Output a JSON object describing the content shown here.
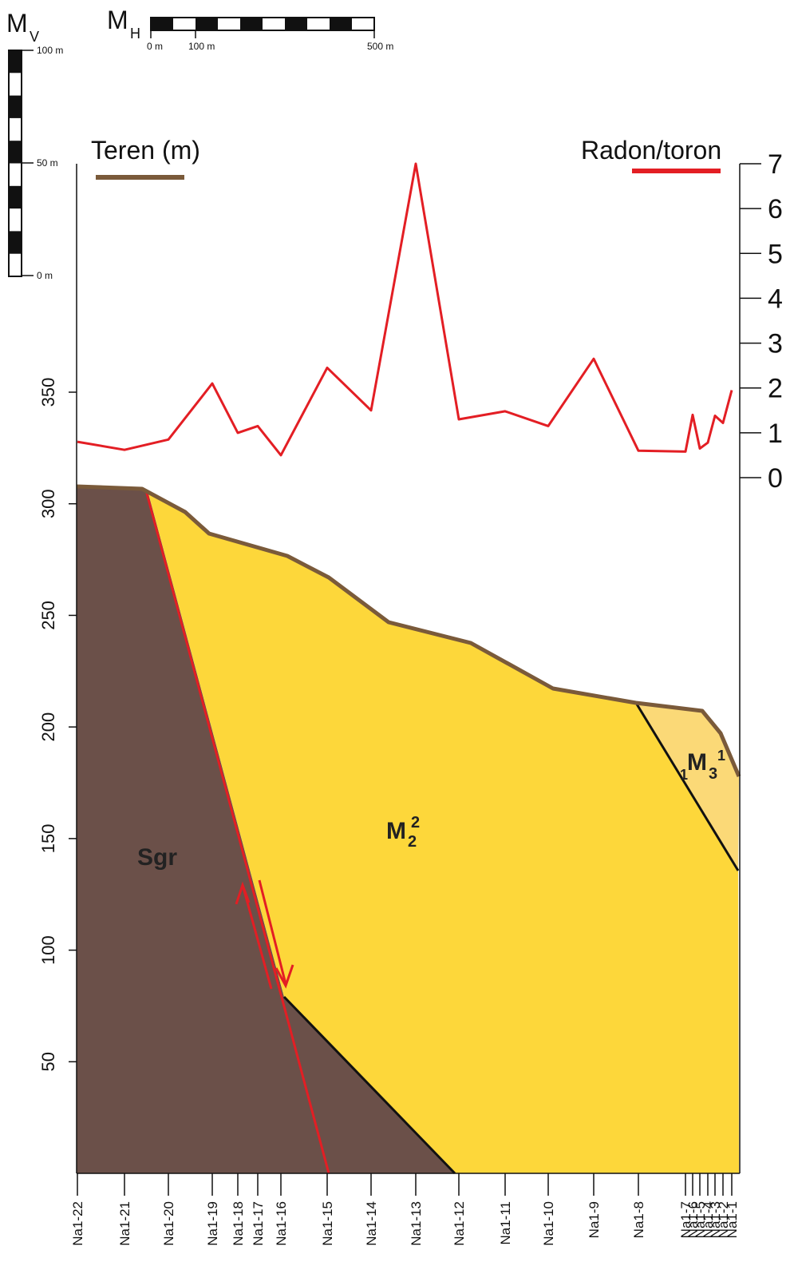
{
  "scales": {
    "vertical": {
      "symbol": "M",
      "sub": "V",
      "labels": [
        "100 m",
        "50 m",
        "0 m"
      ]
    },
    "horizontal": {
      "symbol": "M",
      "sub": "H",
      "labels": [
        "0 m",
        "100 m",
        "500 m"
      ]
    }
  },
  "legend": {
    "terrain_label": "Teren (m)",
    "terrain_color": "#7a5a3a",
    "radon_label": "Radon/toron",
    "radon_color": "#e31e24"
  },
  "units": {
    "sgr": {
      "label": "Sgr",
      "color": "#6b5049"
    },
    "m2": {
      "base": "M",
      "sub": "2",
      "sup": "2",
      "color": "#fdd73a"
    },
    "m3": {
      "pre": "1",
      "base": "M",
      "sub": "3",
      "sup": "1",
      "color": "#fbd977"
    }
  },
  "chart_data": {
    "type": "line",
    "stations": [
      "Na1-22",
      "Na1-21",
      "Na1-20",
      "Na1-19",
      "Na1-18",
      "Na1-17",
      "Na1-16",
      "Na1-15",
      "Na1-14",
      "Na1-13",
      "Na1-12",
      "Na1-11",
      "Na1-10",
      "Na1-9",
      "Na1-8",
      "Na1-7",
      "Na1-6",
      "Na1-5",
      "Na1-4",
      "Na1-3",
      "Na1-2",
      "Na1-1"
    ],
    "left_axis": {
      "ticks": [
        50,
        100,
        150,
        200,
        250,
        300,
        350
      ],
      "range": [
        0,
        350
      ]
    },
    "right_axis": {
      "ticks": [
        0,
        1,
        2,
        3,
        4,
        5,
        6,
        7
      ],
      "range": [
        0,
        7
      ]
    },
    "radon_series": {
      "name": "Radon/toron",
      "values": [
        0.8,
        0.62,
        0.85,
        2.1,
        1.0,
        1.15,
        0.5,
        2.45,
        1.5,
        7.0,
        1.3,
        1.48,
        1.15,
        2.65,
        0.6,
        0.58,
        1.4,
        0.65,
        0.78,
        1.38,
        1.22,
        1.95
      ]
    }
  }
}
